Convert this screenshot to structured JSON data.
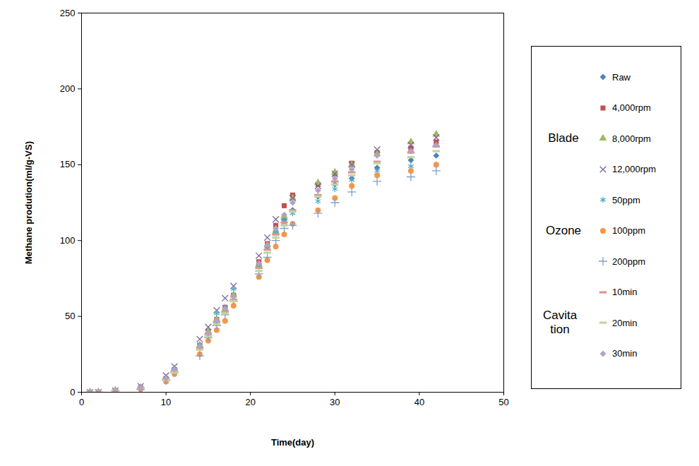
{
  "chart_data": {
    "type": "scatter",
    "xlabel": "Time(day)",
    "ylabel": "Methane prodution(ml/g-VS)",
    "x": [
      1,
      2,
      4,
      7,
      10,
      11,
      14,
      15,
      16,
      17,
      18,
      21,
      22,
      23,
      24,
      25,
      28,
      30,
      32,
      35,
      39,
      42
    ],
    "xlim": [
      0,
      50
    ],
    "xticks": [
      0,
      10,
      20,
      30,
      40,
      50
    ],
    "ylim": [
      0,
      250
    ],
    "yticks": [
      0,
      50,
      100,
      150,
      200,
      250
    ],
    "grid": false,
    "legend": "right",
    "series": [
      {
        "name": "Raw",
        "color": "#4F81BD",
        "marker": "diamond",
        "values": [
          0,
          0,
          1,
          3,
          9,
          14,
          29,
          39,
          47,
          54,
          64,
          84,
          96,
          106,
          114,
          120,
          129,
          137,
          141,
          148,
          153,
          156
        ]
      },
      {
        "name": "4,000rpm",
        "group": "Blade",
        "color": "#C0504D",
        "marker": "square",
        "values": [
          0,
          0,
          1,
          3,
          9,
          15,
          31,
          40,
          48,
          56,
          64,
          86,
          98,
          110,
          123,
          130,
          137,
          144,
          151,
          158,
          161,
          165
        ]
      },
      {
        "name": "8,000rpm",
        "group": "Blade",
        "color": "#9BBB59",
        "marker": "triangle",
        "values": [
          0,
          0,
          1,
          3,
          9,
          15,
          31,
          40,
          48,
          55,
          64,
          84,
          97,
          106,
          116,
          128,
          138,
          145,
          150,
          157,
          165,
          170
        ]
      },
      {
        "name": "12,000rpm",
        "group": "Blade",
        "color": "#8064A2",
        "marker": "x",
        "values": [
          0,
          0,
          1,
          4,
          11,
          17,
          35,
          43,
          54,
          62,
          70,
          90,
          102,
          114,
          112,
          128,
          136,
          144,
          150,
          160,
          163,
          168
        ]
      },
      {
        "name": "50ppm",
        "group": "Ozone",
        "color": "#4BACC6",
        "marker": "asterisk",
        "values": [
          0,
          0,
          1,
          3,
          9,
          15,
          31,
          38,
          52,
          56,
          68,
          83,
          96,
          106,
          113,
          118,
          126,
          134,
          140,
          146,
          149,
          150
        ]
      },
      {
        "name": "100ppm",
        "group": "Ozone",
        "color": "#F79646",
        "marker": "circle",
        "values": [
          0,
          0,
          1,
          2,
          7,
          12,
          25,
          34,
          41,
          47,
          57,
          76,
          87,
          96,
          104,
          111,
          120,
          128,
          136,
          143,
          146,
          150
        ]
      },
      {
        "name": "200ppm",
        "group": "Ozone",
        "color": "#7F9FCF",
        "marker": "plus",
        "values": [
          0,
          0,
          1,
          2,
          8,
          13,
          24,
          36,
          44,
          51,
          60,
          78,
          89,
          100,
          108,
          110,
          118,
          125,
          132,
          139,
          142,
          146
        ]
      },
      {
        "name": "10min",
        "group": "Cavitation",
        "color": "#D99694",
        "marker": "dash",
        "values": [
          0,
          0,
          1,
          3,
          9,
          14,
          29,
          38,
          46,
          53,
          61,
          82,
          94,
          104,
          112,
          120,
          130,
          139,
          145,
          152,
          158,
          162
        ]
      },
      {
        "name": "20min",
        "group": "Cavitation",
        "color": "#C3D69B",
        "marker": "dash",
        "values": [
          0,
          0,
          1,
          3,
          8,
          13,
          28,
          37,
          45,
          52,
          60,
          80,
          92,
          102,
          110,
          119,
          129,
          137,
          143,
          151,
          155,
          159
        ]
      },
      {
        "name": "30min",
        "group": "Cavitation",
        "color": "#B3A2C7",
        "marker": "diamond",
        "values": [
          0,
          0,
          1,
          3,
          9,
          15,
          30,
          39,
          47,
          55,
          63,
          85,
          97,
          108,
          117,
          125,
          133,
          141,
          147,
          156,
          159,
          163
        ]
      }
    ]
  }
}
